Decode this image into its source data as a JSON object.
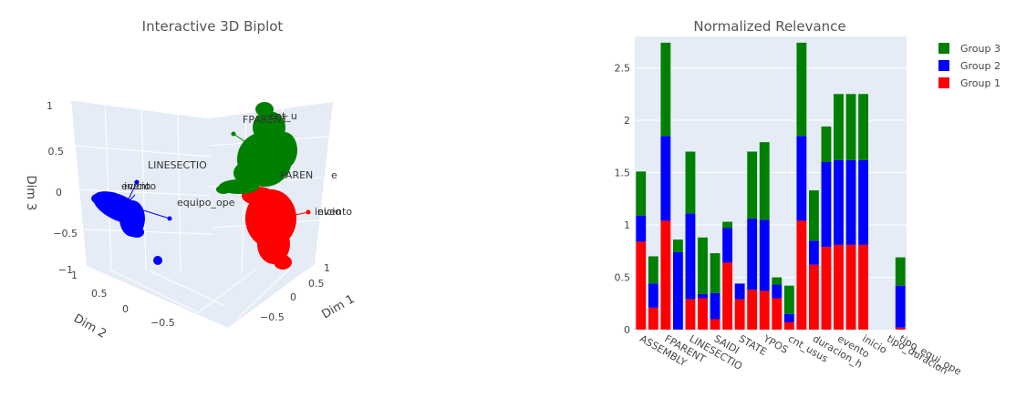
{
  "colors": {
    "group1": "#ff0000",
    "group2": "#0000ff",
    "group3": "#008000",
    "plot_bg": "#e5ecf6",
    "grid": "#ffffff"
  },
  "chart_data": [
    {
      "type": "scatter3d",
      "title": "Interactive 3D Biplot",
      "axes": {
        "x": {
          "label": "Dim 1",
          "ticks": [
            "1",
            "0.5",
            "0",
            "−0.5"
          ]
        },
        "y": {
          "label": "Dim 2",
          "ticks": [
            "1",
            "0.5",
            "0",
            "−0.5"
          ]
        },
        "z": {
          "label": "Dim 3",
          "ticks": [
            "1",
            "0.5",
            "0",
            "−0.5",
            "−1"
          ]
        }
      },
      "annotations": [
        "LINESECTIO",
        "evento",
        "inicio",
        "equipo_ope",
        "FPARENT",
        "cnt_u",
        "PAREN",
        "e",
        "inicio",
        "evento"
      ],
      "grid": true
    },
    {
      "type": "bar",
      "stacked": true,
      "title": "Normalized Relevance",
      "legend": {
        "position": "top-right",
        "order": [
          "Group 3",
          "Group 2",
          "Group 1"
        ]
      },
      "y_ticks": [
        "0",
        "0.5",
        "1",
        "1.5",
        "2",
        "2.5"
      ],
      "ylim": [
        0,
        2.8
      ],
      "x_tick_labels": [
        "ASSEMBLY",
        "FPARENT",
        "LINESECTIO",
        "SAIDI",
        "STATE",
        "YPOS",
        "cnt_usus",
        "duracion_h",
        "evento",
        "inicio",
        "tipo_duracion",
        "tipo_equi_ope"
      ],
      "n_bars": 22,
      "series": [
        {
          "name": "Group 1",
          "values": [
            0.84,
            0.21,
            1.04,
            0.0,
            0.29,
            0.3,
            0.1,
            0.64,
            0.29,
            0.38,
            0.37,
            0.3,
            0.07,
            1.04,
            0.62,
            0.79,
            0.81,
            0.81,
            0.81,
            0.0,
            0.0,
            0.02
          ]
        },
        {
          "name": "Group 2",
          "values": [
            0.25,
            0.23,
            0.81,
            0.74,
            0.82,
            0.04,
            0.25,
            0.33,
            0.15,
            0.68,
            0.68,
            0.13,
            0.08,
            0.81,
            0.23,
            0.81,
            0.81,
            0.81,
            0.81,
            0.0,
            0.0,
            0.4
          ]
        },
        {
          "name": "Group 3",
          "values": [
            0.42,
            0.26,
            0.89,
            0.12,
            0.59,
            0.54,
            0.38,
            0.06,
            0.0,
            0.64,
            0.74,
            0.07,
            0.27,
            0.89,
            0.48,
            0.34,
            0.63,
            0.63,
            0.63,
            0.0,
            0.0,
            0.27
          ]
        }
      ]
    }
  ]
}
